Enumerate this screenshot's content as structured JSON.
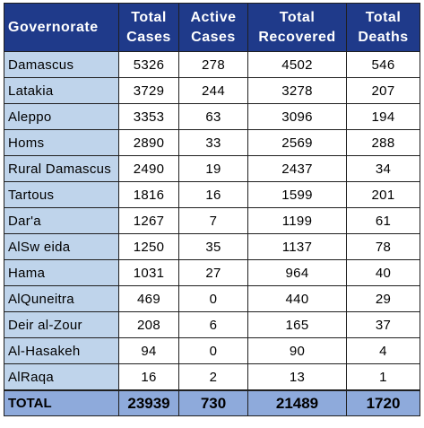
{
  "table": {
    "headers": [
      [
        "Governorate"
      ],
      [
        "Total",
        "Cases"
      ],
      [
        "Active",
        "Cases"
      ],
      [
        "Total",
        "Recovered"
      ],
      [
        "Total",
        "Deaths"
      ]
    ],
    "rows": [
      [
        "Damascus",
        "5326",
        "278",
        "4502",
        "546"
      ],
      [
        "Latakia",
        "3729",
        "244",
        "3278",
        "207"
      ],
      [
        "Aleppo",
        "3353",
        "63",
        "3096",
        "194"
      ],
      [
        "Homs",
        "2890",
        "33",
        "2569",
        "288"
      ],
      [
        "Rural Damascus",
        "2490",
        "19",
        "2437",
        "34"
      ],
      [
        "Tartous",
        "1816",
        "16",
        "1599",
        "201"
      ],
      [
        "Dar'a",
        "1267",
        "7",
        "1199",
        "61"
      ],
      [
        "AlSw eida",
        "1250",
        "35",
        "1137",
        "78"
      ],
      [
        "Hama",
        "1031",
        "27",
        "964",
        "40"
      ],
      [
        "AlQuneitra",
        "469",
        "0",
        "440",
        "29"
      ],
      [
        "Deir al-Zour",
        "208",
        "6",
        "165",
        "37"
      ],
      [
        "Al-Hasakeh",
        "94",
        "0",
        "90",
        "4"
      ],
      [
        "AlRaqa",
        "16",
        "2",
        "13",
        "1"
      ]
    ],
    "total": [
      "TOTAL",
      "23939",
      "730",
      "21489",
      "1720"
    ]
  },
  "colors": {
    "header_bg": "#1f3a8a",
    "name_col_bg": "#bfd4eb",
    "total_row_bg": "#8eaadb"
  }
}
